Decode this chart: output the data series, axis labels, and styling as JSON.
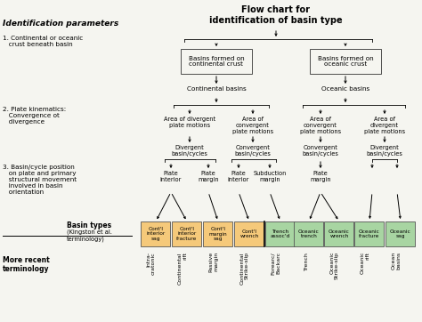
{
  "title": "Flow chart for\nidentification of basin type",
  "bg_color": "#f5f5f0",
  "left_panel_title": "Identification parameters",
  "left_panel_items": [
    "1. Continental or oceanic\n   crust beneath basin",
    "2. Plate kinematics:\n   Convergence ot\n   divergence",
    "3. Basin/cycle position\n   on plate and primary\n   structural movement\n   involved in basin\n   orientation"
  ],
  "basin_boxes": [
    {
      "text": "Cont'l\ninterior\nsag",
      "color": "#f5c97a"
    },
    {
      "text": "Cont'l\ninterior\nfracture",
      "color": "#f5c97a"
    },
    {
      "text": "Cont'l\nmargin\nsag",
      "color": "#f5c97a"
    },
    {
      "text": "Cont'l\nwrench",
      "color": "#f5c97a"
    },
    {
      "text": "Trench\nassoc'd",
      "color": "#a8d5a2"
    },
    {
      "text": "Oceanic\ntrench",
      "color": "#a8d5a2"
    },
    {
      "text": "Oceanic\nwrench",
      "color": "#a8d5a2"
    },
    {
      "text": "Oceanic\nfracture",
      "color": "#a8d5a2"
    },
    {
      "text": "Oceanic\nsag",
      "color": "#a8d5a2"
    }
  ],
  "recent_terms": [
    "Intra-\ncratonic",
    "Continental\nrift",
    "Passive\nmargin",
    "Continental\nStrike-slip",
    "Forearc/\nBackarc",
    "Trench",
    "Oceanic\nStrike-slip",
    "Oceanic\nrift",
    "Ocean\nbasins"
  ]
}
